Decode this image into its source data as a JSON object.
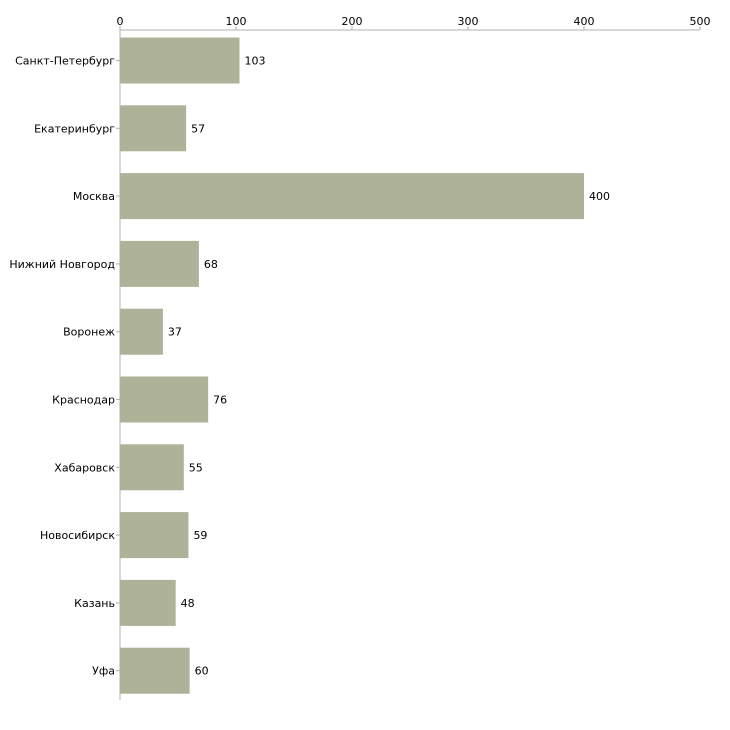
{
  "chart_data": {
    "type": "bar",
    "orientation": "horizontal",
    "title": "",
    "xlabel": "",
    "ylabel": "",
    "xlim": [
      0,
      500
    ],
    "x_ticks": [
      0,
      100,
      200,
      300,
      400,
      500
    ],
    "tick_labels": [
      "0",
      "100",
      "200",
      "300",
      "400",
      "500"
    ],
    "axis_position": "top",
    "grid": false,
    "categories": [
      "Санкт-Петербург",
      "Екатеринбург",
      "Москва",
      "Нижний Новгород",
      "Воронеж",
      "Краснодар",
      "Хабаровск",
      "Новосибирск",
      "Казань",
      "Уфа"
    ],
    "values": [
      103,
      57,
      400,
      68,
      37,
      76,
      55,
      59,
      48,
      60
    ],
    "value_labels": [
      "103",
      "57",
      "400",
      "68",
      "37",
      "76",
      "55",
      "59",
      "48",
      "60"
    ],
    "bar_color": "#adb298",
    "axis_color": "#b0b0b0"
  }
}
